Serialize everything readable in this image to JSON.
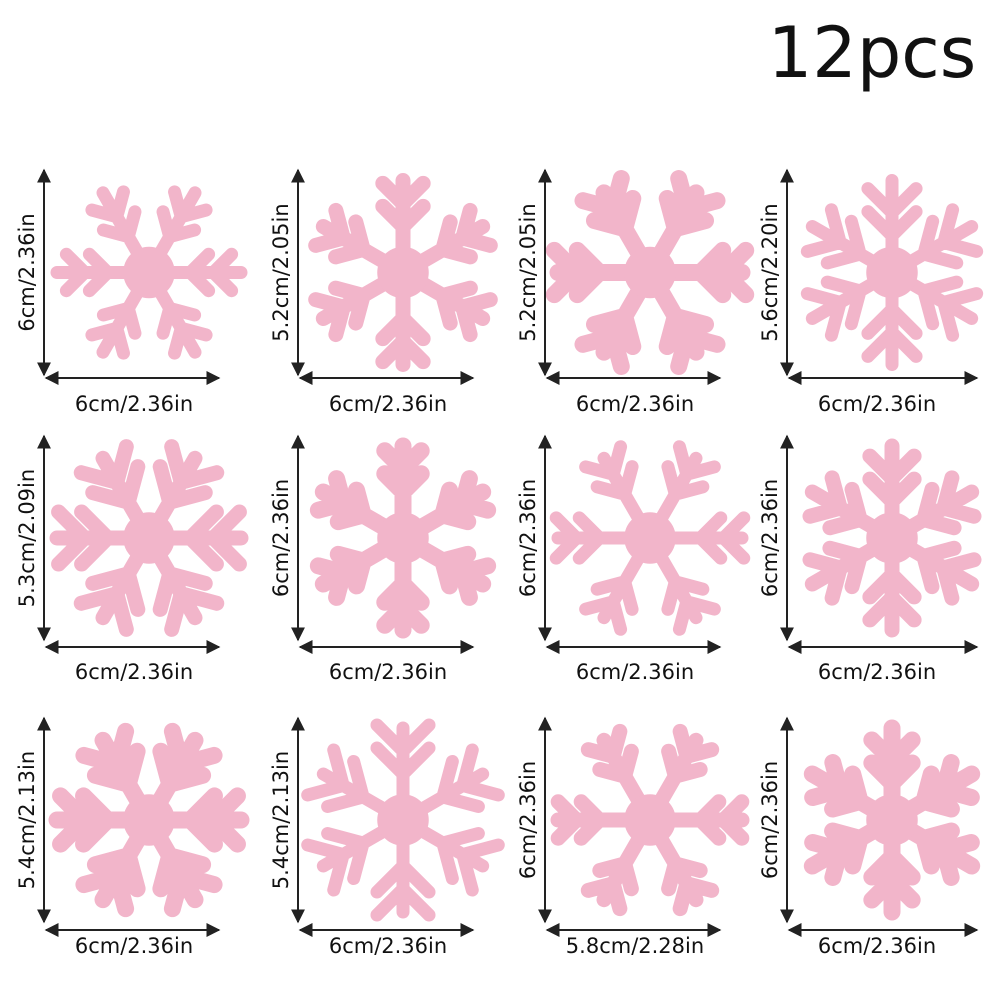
{
  "title": "12pcs",
  "items": [
    {
      "height": "6cm/2.36in",
      "width": "6cm/2.36in"
    },
    {
      "height": "5.2cm/2.05in",
      "width": "6cm/2.36in"
    },
    {
      "height": "5.2cm/2.05in",
      "width": "6cm/2.36in"
    },
    {
      "height": "5.6cm/2.20in",
      "width": "6cm/2.36in"
    },
    {
      "height": "5.3cm/2.09in",
      "width": "6cm/2.36in"
    },
    {
      "height": "6cm/2.36in",
      "width": "6cm/2.36in"
    },
    {
      "height": "6cm/2.36in",
      "width": "6cm/2.36in"
    },
    {
      "height": "6cm/2.36in",
      "width": "6cm/2.36in"
    },
    {
      "height": "5.4cm/2.13in",
      "width": "6cm/2.36in"
    },
    {
      "height": "5.4cm/2.13in",
      "width": "6cm/2.36in"
    },
    {
      "height": "6cm/2.36in",
      "width": "5.8cm/2.28in"
    },
    {
      "height": "6cm/2.36in",
      "width": "6cm/2.36in"
    }
  ]
}
